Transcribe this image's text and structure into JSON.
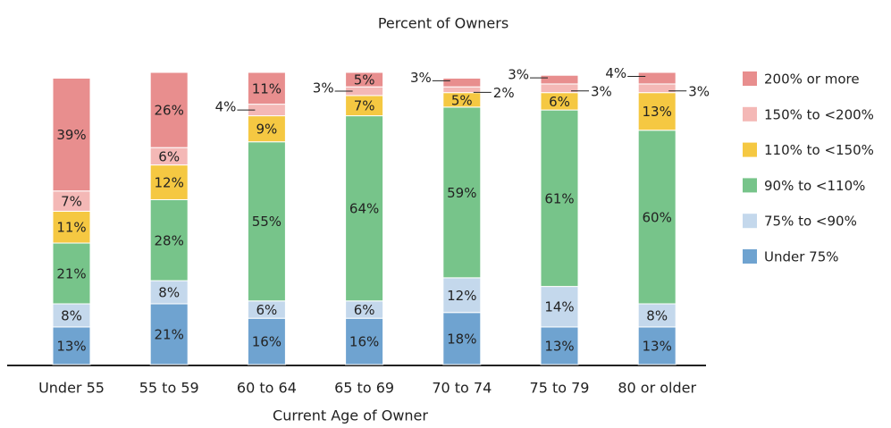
{
  "chart_data": {
    "type": "stacked_bar",
    "title": "Percent of Owners",
    "x_label": "Current Age of Owner",
    "categories": [
      "Under 55",
      "55 to 59",
      "60 to 64",
      "65 to 69",
      "70 to 74",
      "75 to 79",
      "80 or older"
    ],
    "series": [
      {
        "name": "Under 75%",
        "color": "#6fa3d0",
        "values": [
          13,
          21,
          16,
          16,
          18,
          13,
          13
        ],
        "value_labels": [
          "13%",
          "21%",
          "16%",
          "16%",
          "18%",
          "13%",
          "13%"
        ]
      },
      {
        "name": "75% to <90%",
        "color": "#c4d8ec",
        "values": [
          8,
          8,
          6,
          6,
          12,
          14,
          8
        ],
        "value_labels": [
          "8%",
          "8%",
          "6%",
          "6%",
          "12%",
          "14%",
          "8%"
        ]
      },
      {
        "name": "90% to <110%",
        "color": "#77c48a",
        "values": [
          21,
          28,
          55,
          64,
          59,
          61,
          60
        ],
        "value_labels": [
          "21%",
          "28%",
          "55%",
          "64%",
          "59%",
          "61%",
          "60%"
        ]
      },
      {
        "name": "110% to <150%",
        "color": "#f5c842",
        "values": [
          11,
          12,
          9,
          7,
          5,
          6,
          13
        ],
        "value_labels": [
          "11%",
          "12%",
          "9%",
          "7%",
          "5%",
          "6%",
          "13%"
        ]
      },
      {
        "name": "150% to <200%",
        "color": "#f4b8b6",
        "values": [
          7,
          6,
          4,
          3,
          2,
          3,
          3
        ],
        "value_labels": [
          "7%",
          "6%",
          "4%",
          "3%",
          "2%",
          "3%",
          "3%"
        ]
      },
      {
        "name": "200% or more",
        "color": "#e88e8e",
        "values": [
          39,
          26,
          11,
          5,
          3,
          3,
          4
        ],
        "value_labels": [
          "39%",
          "26%",
          "11%",
          "5%",
          "3%",
          "3%",
          "4%"
        ]
      }
    ],
    "legend": "right"
  }
}
